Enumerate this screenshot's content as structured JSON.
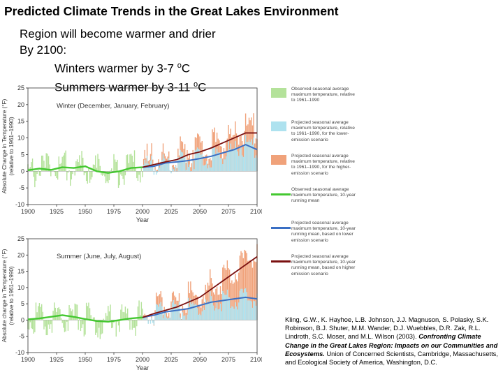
{
  "slide": {
    "title": "Predicted Climate Trends in the Great Lakes Environment",
    "line1": "Region will become warmer and drier",
    "line2": "By 2100:",
    "winter_pre": "Winters warmer by 3-7 ",
    "summer_pre": "Summers warmer by 3-11 ",
    "deg_o": "o",
    "deg_c": "C"
  },
  "legend": [
    {
      "text": "Observed seasonal average maximum temperature, relative to 1961–1990",
      "color": "#b4e29a",
      "kind": "box"
    },
    {
      "text": "Projected seasonal average maximum temperature, relative to 1961–1990, for the lower-emission scenario",
      "color": "#aee2ef",
      "kind": "box"
    },
    {
      "text": "Projected seasonal average maximum temperature, relative to 1961–1990, for the higher-emission scenario",
      "color": "#f0a27a",
      "kind": "box"
    },
    {
      "text": "Observed seasonal average maximum temperature, 10-year running mean",
      "color": "#44c830",
      "kind": "line"
    },
    {
      "text": "Projected seasonal average maximum temperature, 10-year running mean, based on lower emission scenario",
      "color": "#3a6fc4",
      "kind": "line"
    },
    {
      "text": "Projected seasonal average maximum temperature, 10-year running mean, based on higher emission scenario",
      "color": "#7a1010",
      "kind": "line"
    }
  ],
  "citation": {
    "authors": "Kling, G.W., K. Hayhoe, L.B. Johnson, J.J. Magnuson, S. Polasky, S.K. Robinson, B.J. Shuter, M.M. Wander, D.J. Wuebbles, D.R. Zak, R.L. Lindroth, S.C. Moser, and M.L. Wilson (2003). ",
    "work": "Confronting Climate Change in the Great Lakes Region: Impacts on our Communities and Ecosystems.",
    "publisher": " Union of Concerned Scientists, Cambridge, Massachusetts, and Ecological Society of America, Washington, D.C."
  },
  "chart_data": [
    {
      "type": "line",
      "inner_label": "Winter (December, January, February)",
      "xlabel": "Year",
      "ylabel": "Absolute Change in Temperature (°F) (relative to 1961–1990)",
      "xlim": [
        1900,
        2100
      ],
      "ylim": [
        -10,
        25
      ],
      "xticks": [
        1900,
        1925,
        1950,
        1975,
        2000,
        2025,
        2050,
        2075,
        2100
      ],
      "yticks": [
        -10,
        -5,
        0,
        5,
        10,
        15,
        20,
        25
      ],
      "series": [
        {
          "name": "Observed seasonal average maximum temperature, 10-year running mean",
          "x": [
            1900,
            1910,
            1920,
            1930,
            1940,
            1950,
            1960,
            1970,
            1980,
            1990,
            2000
          ],
          "y": [
            0.3,
            0.8,
            0.4,
            1.2,
            1.0,
            1.5,
            0.0,
            -0.5,
            0.0,
            1.0,
            1.2
          ]
        },
        {
          "name": "Projected seasonal average maximum temperature, 10-year running mean, based on lower emission scenario",
          "x": [
            2000,
            2010,
            2020,
            2030,
            2040,
            2050,
            2060,
            2070,
            2080,
            2090,
            2100
          ],
          "y": [
            1.2,
            1.5,
            2.5,
            2.8,
            3.2,
            3.8,
            4.5,
            5.5,
            6.5,
            8.0,
            6.5
          ]
        },
        {
          "name": "Projected seasonal average maximum temperature, 10-year running mean, based on higher emission scenario",
          "x": [
            2000,
            2010,
            2020,
            2030,
            2040,
            2050,
            2060,
            2070,
            2080,
            2090,
            2100
          ],
          "y": [
            1.2,
            2.0,
            2.8,
            3.5,
            5.0,
            5.8,
            7.0,
            8.5,
            10.0,
            11.5,
            11.5
          ]
        }
      ]
    },
    {
      "type": "line",
      "inner_label": "Summer (June, July, August)",
      "xlabel": "Year",
      "ylabel": "Absolute change in Temperature (°F) (relative to 1961–1990)",
      "xlim": [
        1900,
        2100
      ],
      "ylim": [
        -10,
        25
      ],
      "xticks": [
        1900,
        1925,
        1950,
        1975,
        2000,
        2025,
        2050,
        2075,
        2100
      ],
      "yticks": [
        -10,
        -5,
        0,
        5,
        10,
        15,
        20,
        25
      ],
      "series": [
        {
          "name": "Observed seasonal average maximum temperature, 10-year running mean",
          "x": [
            1900,
            1910,
            1920,
            1930,
            1940,
            1950,
            1960,
            1970,
            1980,
            1990,
            2000
          ],
          "y": [
            0.2,
            0.5,
            1.0,
            1.5,
            1.0,
            0.3,
            -0.3,
            -0.5,
            0.0,
            0.5,
            0.8
          ]
        },
        {
          "name": "Projected seasonal average maximum temperature, 10-year running mean, based on lower emission scenario",
          "x": [
            2000,
            2010,
            2020,
            2030,
            2040,
            2050,
            2060,
            2070,
            2080,
            2090,
            2100
          ],
          "y": [
            0.8,
            1.5,
            2.5,
            3.0,
            3.5,
            4.5,
            5.5,
            6.0,
            6.5,
            7.0,
            6.5
          ]
        },
        {
          "name": "Projected seasonal average maximum temperature, 10-year running mean, based on higher emission scenario",
          "x": [
            2000,
            2010,
            2020,
            2030,
            2040,
            2050,
            2060,
            2070,
            2080,
            2090,
            2100
          ],
          "y": [
            0.8,
            2.0,
            3.0,
            4.0,
            5.5,
            7.0,
            9.5,
            12.0,
            14.5,
            17.0,
            19.5
          ]
        }
      ]
    }
  ]
}
